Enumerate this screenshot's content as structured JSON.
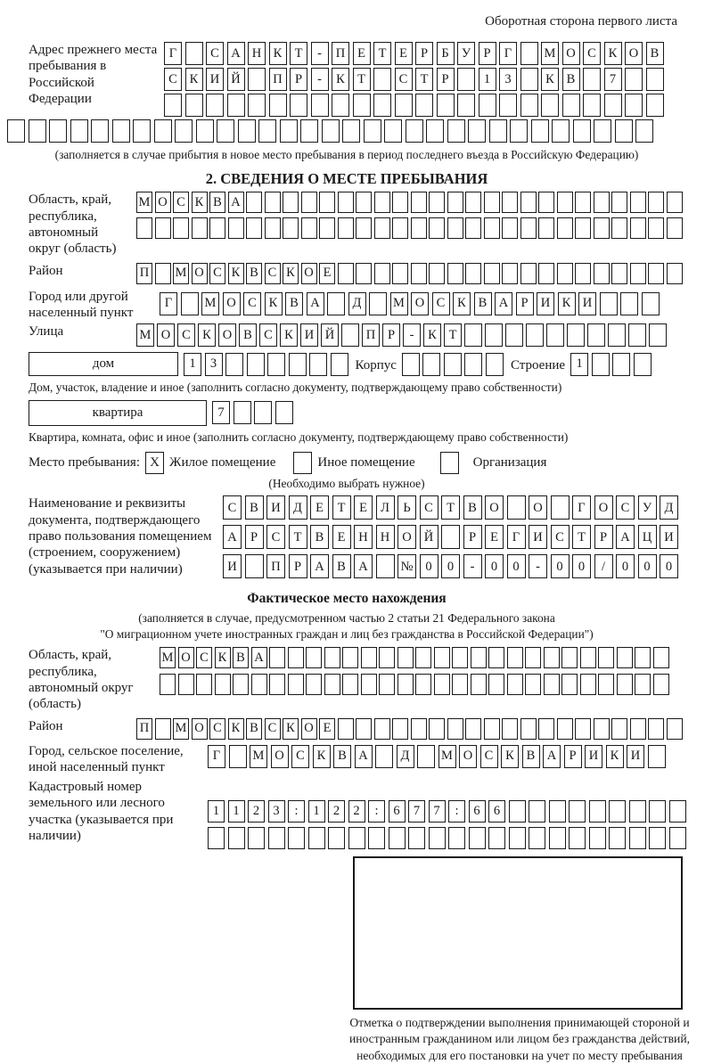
{
  "page": {
    "header_note": "Оборотная сторона первого листа",
    "ink_color": "#1a1a1a"
  },
  "prev_address": {
    "label": "Адрес прежнего места пребывания в Российской Федерации",
    "rows": [
      {
        "t": "Г САНКТ-ПЕТЕРБУРГ МОСКОВ",
        "n": 24
      },
      {
        "t": "СКИЙ ПР-КТ СТР 13 КВ 7",
        "n": 24
      },
      {
        "t": "",
        "n": 24
      },
      {
        "t": "",
        "n": 31
      }
    ],
    "caption": "(заполняется в случае прибытия в новое место пребывания в период последнего въезда в Российскую Федерацию)"
  },
  "section2": {
    "title": "2. СВЕДЕНИЯ О МЕСТЕ ПРЕБЫВАНИЯ",
    "region": {
      "label": "Область, край, республика, автономный округ (область)",
      "rows": [
        {
          "t": "МОСКВА",
          "n": 30
        },
        {
          "t": "",
          "n": 30
        }
      ]
    },
    "district": {
      "label": "Район",
      "row": {
        "t": "П МОСКВСКОЕ",
        "n": 30
      }
    },
    "city": {
      "label": "Город или другой населенный пункт",
      "row": {
        "t": "Г МОСКВА Д МОСКВАРИКИ",
        "n": 24
      }
    },
    "street": {
      "label": "Улица",
      "row": {
        "t": "МОСКОВСКИЙ ПР-КТ",
        "n": 26
      }
    },
    "house": {
      "box_label": "дом",
      "number": {
        "t": "13",
        "n": 8
      },
      "korpus_label": "Корпус",
      "korpus": {
        "t": "",
        "n": 5
      },
      "stroenie_label": "Строение",
      "stroenie": {
        "t": "1",
        "n": 4
      },
      "caption": "Дом, участок, владение и иное (заполнить согласно документу, подтверждающему право собственности)"
    },
    "apartment": {
      "box_label": "квартира",
      "cells": {
        "t": "7",
        "n": 4
      },
      "caption": "Квартира, комната, офис и иное (заполнить согласно документу, подтверждающему право собственности)"
    },
    "place_type": {
      "label": "Место пребывания:",
      "options": [
        {
          "label": "Жилое помещение",
          "mark": "X"
        },
        {
          "label": "Иное помещение",
          "mark": ""
        },
        {
          "label": "Организация",
          "mark": ""
        }
      ],
      "caption": "(Необходимо выбрать нужное)"
    },
    "document": {
      "label": "Наименование и реквизиты документа, подтверждающего право пользования помещением (строением, сооружением) (указывается при наличии)",
      "rows": [
        {
          "t": "СВИДЕТЕЛЬСТВО О ГОСУД",
          "n": 21
        },
        {
          "t": "АРСТВЕННОЙ РЕГИСТРАЦИ",
          "n": 21
        },
        {
          "t": "И ПРАВА №00-00-00/000",
          "n": 21
        }
      ]
    }
  },
  "actual_location": {
    "title": "Фактическое место нахождения",
    "caption_lines": [
      "(заполняется в случае, предусмотренном частью 2 статьи 21 Федерального закона",
      "\"О миграционном учете иностранных граждан и лиц без гражданства в Российской Федерации\")"
    ],
    "region": {
      "label": "Область, край, республика, автономный округ (область)",
      "rows": [
        {
          "t": "МОСКВА",
          "n": 28
        },
        {
          "t": "",
          "n": 28
        }
      ]
    },
    "district": {
      "label": "Район",
      "row": {
        "t": "П МОСКВСКОЕ",
        "n": 30
      }
    },
    "city": {
      "label": "Город, сельское поселение, иной населенный пункт",
      "row": {
        "t": "Г МОСКВА Д МОСКВАРИКИ",
        "n": 22
      }
    },
    "cadastre": {
      "label": "Кадастровый номер земельного или лесного участка (указывается при наличии)",
      "rows": [
        {
          "t": "1123:122:677:66",
          "n": 24
        },
        {
          "t": "",
          "n": 24
        }
      ]
    },
    "stamp_caption": "Отметка о подтверждении выполнения принимающей стороной и иностранным гражданином или лицом без гражданства действий, необходимых для его постановки на учет по месту пребывания"
  }
}
